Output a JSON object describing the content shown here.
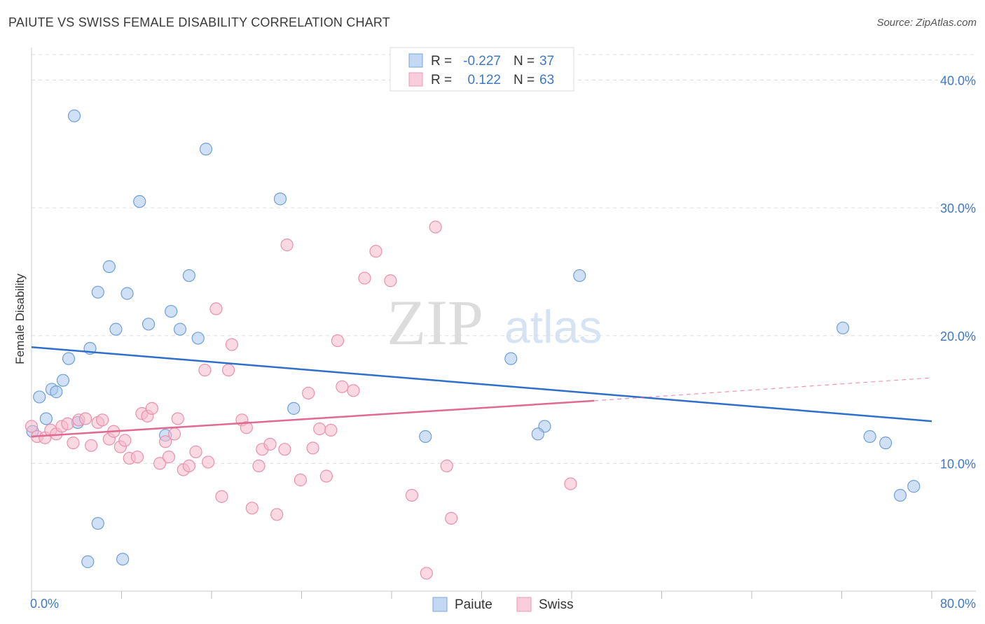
{
  "header": {
    "title": "PAIUTE VS SWISS FEMALE DISABILITY CORRELATION CHART",
    "source": "Source: ZipAtlas.com"
  },
  "watermark": {
    "zip": "ZIP",
    "atlas": "atlas"
  },
  "colors": {
    "paiute_fill": "#a9c8ee",
    "paiute_stroke": "#6f9fd8",
    "paiute_line": "#2f6fcc",
    "swiss_fill": "#f6b9cc",
    "swiss_stroke": "#e891ad",
    "swiss_line": "#e06a92",
    "tick_label": "#3f78c8",
    "grid": "#dddddd"
  },
  "chart_data": {
    "type": "scatter",
    "title": "PAIUTE VS SWISS FEMALE DISABILITY CORRELATION CHART",
    "xlabel": "",
    "ylabel": "Female Disability",
    "xlim": [
      0,
      80
    ],
    "ylim": [
      0,
      42
    ],
    "x_tick_labels": [
      "0.0%",
      "80.0%"
    ],
    "y_ticks": [
      10,
      20,
      30,
      40
    ],
    "y_tick_labels": [
      "10.0%",
      "20.0%",
      "30.0%",
      "40.0%"
    ],
    "legend": {
      "position": "top-center",
      "rows": [
        {
          "r_label": "R =",
          "r_value": "-0.227",
          "n_label": "N =",
          "n_value": "37"
        },
        {
          "r_label": "R =",
          "r_value": "0.122",
          "n_label": "N =",
          "n_value": "63"
        }
      ]
    },
    "bottom_legend": [
      "Paiute",
      "Swiss"
    ],
    "series": [
      {
        "name": "Paiute",
        "r": -0.227,
        "n": 37,
        "trend": {
          "x0": 0,
          "y0": 19.1,
          "x1": 80,
          "y1": 13.3
        },
        "points": [
          [
            3.8,
            37.2
          ],
          [
            15.5,
            34.6
          ],
          [
            9.6,
            30.5
          ],
          [
            22.1,
            30.7
          ],
          [
            6.9,
            25.4
          ],
          [
            14.0,
            24.7
          ],
          [
            5.9,
            23.4
          ],
          [
            8.5,
            23.3
          ],
          [
            12.4,
            21.9
          ],
          [
            7.5,
            20.5
          ],
          [
            10.4,
            20.9
          ],
          [
            13.2,
            20.5
          ],
          [
            14.8,
            19.8
          ],
          [
            5.2,
            19.0
          ],
          [
            3.3,
            18.2
          ],
          [
            2.8,
            16.5
          ],
          [
            1.8,
            15.8
          ],
          [
            2.2,
            15.6
          ],
          [
            0.7,
            15.2
          ],
          [
            1.3,
            13.5
          ],
          [
            4.1,
            13.2
          ],
          [
            0.1,
            12.5
          ],
          [
            11.9,
            12.2
          ],
          [
            23.3,
            14.3
          ],
          [
            35.0,
            12.1
          ],
          [
            42.6,
            18.2
          ],
          [
            48.7,
            24.7
          ],
          [
            45.6,
            12.9
          ],
          [
            45.0,
            12.3
          ],
          [
            5.9,
            5.3
          ],
          [
            5.0,
            2.3
          ],
          [
            8.1,
            2.5
          ],
          [
            72.1,
            20.6
          ],
          [
            74.5,
            12.1
          ],
          [
            75.9,
            11.6
          ],
          [
            77.2,
            7.5
          ],
          [
            78.4,
            8.2
          ]
        ]
      },
      {
        "name": "Swiss",
        "r": 0.122,
        "n": 63,
        "trend": {
          "x0": 0,
          "y0": 12.1,
          "x1": 50,
          "y1": 14.9
        },
        "trend_dashed": {
          "x0": 50,
          "y0": 14.9,
          "x1": 80,
          "y1": 16.7
        },
        "points": [
          [
            0.0,
            12.9
          ],
          [
            0.5,
            12.1
          ],
          [
            1.2,
            12.0
          ],
          [
            1.7,
            12.6
          ],
          [
            2.2,
            12.3
          ],
          [
            2.7,
            12.9
          ],
          [
            3.2,
            13.1
          ],
          [
            3.7,
            11.6
          ],
          [
            4.2,
            13.4
          ],
          [
            4.8,
            13.5
          ],
          [
            5.3,
            11.4
          ],
          [
            5.9,
            13.2
          ],
          [
            6.3,
            13.4
          ],
          [
            6.9,
            11.9
          ],
          [
            7.3,
            12.5
          ],
          [
            7.9,
            11.3
          ],
          [
            8.3,
            11.8
          ],
          [
            8.7,
            10.4
          ],
          [
            9.4,
            10.5
          ],
          [
            9.8,
            13.9
          ],
          [
            10.3,
            13.7
          ],
          [
            10.7,
            14.3
          ],
          [
            11.4,
            10.0
          ],
          [
            11.9,
            11.7
          ],
          [
            12.2,
            10.5
          ],
          [
            12.7,
            12.3
          ],
          [
            13.0,
            13.5
          ],
          [
            13.5,
            9.5
          ],
          [
            14.0,
            9.8
          ],
          [
            14.6,
            10.9
          ],
          [
            15.4,
            17.3
          ],
          [
            15.7,
            10.1
          ],
          [
            16.4,
            22.1
          ],
          [
            16.9,
            7.4
          ],
          [
            17.5,
            17.3
          ],
          [
            17.8,
            19.3
          ],
          [
            18.7,
            13.4
          ],
          [
            19.1,
            12.8
          ],
          [
            19.6,
            6.5
          ],
          [
            20.2,
            9.8
          ],
          [
            20.5,
            11.1
          ],
          [
            21.2,
            11.5
          ],
          [
            21.8,
            6.0
          ],
          [
            22.5,
            11.1
          ],
          [
            22.7,
            27.1
          ],
          [
            23.9,
            8.7
          ],
          [
            24.6,
            15.5
          ],
          [
            25.0,
            11.2
          ],
          [
            25.6,
            12.7
          ],
          [
            26.2,
            9.0
          ],
          [
            26.6,
            12.6
          ],
          [
            27.2,
            19.6
          ],
          [
            27.6,
            16.0
          ],
          [
            28.6,
            15.7
          ],
          [
            29.6,
            24.5
          ],
          [
            30.6,
            26.6
          ],
          [
            31.9,
            24.3
          ],
          [
            33.8,
            7.5
          ],
          [
            35.1,
            1.4
          ],
          [
            35.9,
            28.5
          ],
          [
            36.9,
            9.8
          ],
          [
            37.3,
            5.7
          ],
          [
            47.9,
            8.4
          ]
        ]
      }
    ]
  }
}
